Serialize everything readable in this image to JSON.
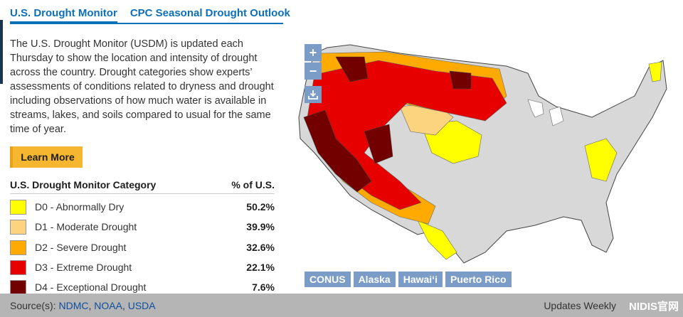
{
  "tabs": [
    {
      "label": "U.S. Drought Monitor",
      "active": true
    },
    {
      "label": "CPC Seasonal Drought Outlook",
      "active": false
    }
  ],
  "description": "The U.S. Drought Monitor (USDM) is updated each Thursday to show the location and intensity of drought across the country. Drought categories show experts’ assessments of conditions related to dryness and drought including observations of how much water is available in streams, lakes, and soils compared to usual for the same time of year.",
  "learn_more_label": "Learn More",
  "legend": {
    "header_category": "U.S. Drought Monitor Category",
    "header_pct": "% of U.S.",
    "items": [
      {
        "label": "D0 - Abnormally Dry",
        "pct": "50.2%",
        "color": "#ffff00"
      },
      {
        "label": "D1 - Moderate Drought",
        "pct": "39.9%",
        "color": "#fcd37f"
      },
      {
        "label": "D2 - Severe Drought",
        "pct": "32.6%",
        "color": "#ffaa00"
      },
      {
        "label": "D3 - Extreme Drought",
        "pct": "22.1%",
        "color": "#e60000"
      },
      {
        "label": "D4 - Exceptional Drought",
        "pct": "7.6%",
        "color": "#730000"
      }
    ]
  },
  "map": {
    "zoom_in": "+",
    "zoom_out": "−",
    "region_buttons": [
      "CONUS",
      "Alaska",
      "Hawaiʻi",
      "Puerto Rico"
    ]
  },
  "footer": {
    "sources_prefix": "Source(s):",
    "sources": [
      "NDMC",
      "NOAA",
      "USDA"
    ],
    "updates": "Updates Weekly",
    "watermark": "NIDIS官网"
  }
}
